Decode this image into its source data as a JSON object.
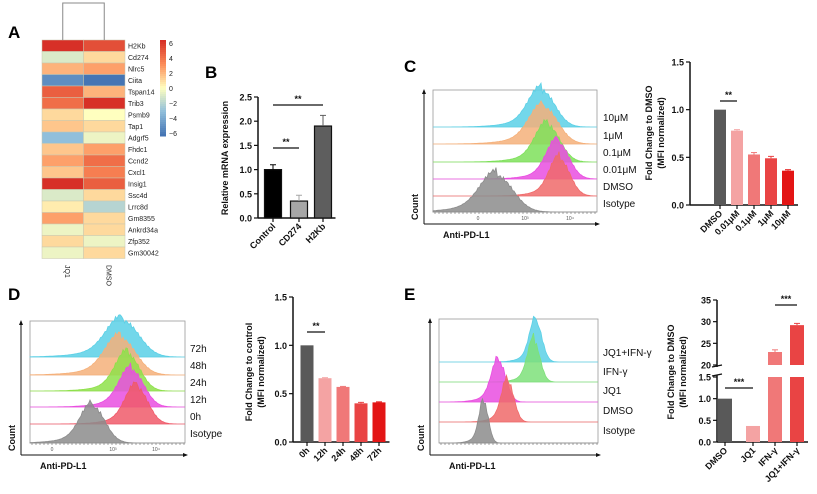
{
  "panels": {
    "A": "A",
    "B": "B",
    "C": "C",
    "D": "D",
    "E": "E"
  },
  "chart_data": [
    {
      "panel": "A",
      "type": "heatmap",
      "columns": [
        "JQ1",
        "DMSO"
      ],
      "rows": [
        "H2Kb",
        "Cd274",
        "Nlrc5",
        "Ciita",
        "Tspan14",
        "Trib3",
        "Psmb9",
        "Tap1",
        "Adgrf5",
        "Fhdc1",
        "Ccnd2",
        "Cxcl1",
        "Insig1",
        "Ssc4d",
        "Lrrc8d",
        "Gm8355",
        "Ankrd34a",
        "Zfp352",
        "Gm30042"
      ],
      "values": [
        [
          6,
          5
        ],
        [
          -1,
          1
        ],
        [
          2,
          2.5
        ],
        [
          -5,
          -6
        ],
        [
          4.5,
          2
        ],
        [
          4,
          6
        ],
        [
          1,
          0
        ],
        [
          1.5,
          1
        ],
        [
          -3,
          -0.5
        ],
        [
          1.5,
          2.5
        ],
        [
          2.5,
          4
        ],
        [
          1.5,
          3.5
        ],
        [
          6.5,
          4.5
        ],
        [
          -1,
          1
        ],
        [
          0.5,
          -2
        ],
        [
          2.5,
          1
        ],
        [
          -0.5,
          1
        ],
        [
          1,
          -0.5
        ],
        [
          -0.5,
          1
        ]
      ],
      "colorbar_ticks": [
        "6",
        "4",
        "2",
        "0",
        "−2",
        "−4",
        "−6"
      ],
      "color_range": [
        -6,
        6
      ],
      "colormap": [
        "#4575b4",
        "#91bfdb",
        "#ffffbf",
        "#fc8d59",
        "#d73027"
      ],
      "dendrogram": "columns"
    },
    {
      "panel": "B",
      "type": "bar",
      "categories": [
        "Control",
        "CD274",
        "H2Kb"
      ],
      "values": [
        1.0,
        0.35,
        1.9
      ],
      "errors": [
        0.1,
        0.12,
        0.22
      ],
      "colors": [
        "#000000",
        "#a6a6a6",
        "#5e5e5e"
      ],
      "ylabel": "Relative mRNA expression",
      "ylim": [
        0,
        2.5
      ],
      "yticks": [
        "0.0",
        "0.5",
        "1.0",
        "1.5",
        "2.0",
        "2.5"
      ],
      "significance": [
        {
          "from": "Control",
          "to": "CD274",
          "label": "**"
        },
        {
          "from": "Control",
          "to": "H2Kb",
          "label": "**"
        }
      ]
    },
    {
      "panel": "C",
      "type": "histogram-overlay",
      "samples": [
        "10μM",
        "1μM",
        "0.1μM",
        "0.01μM",
        "DMSO",
        "Isotype"
      ],
      "colors": [
        "#5bd0e6",
        "#f5b07a",
        "#7ee05a",
        "#e94ee0",
        "#f06a6a",
        "#8c8c8c"
      ],
      "xlabel": "Anti-PD-L1",
      "ylabel": "Count",
      "xticks": [
        "0",
        "10³",
        "10⁴"
      ]
    },
    {
      "panel": "C",
      "type": "bar",
      "categories": [
        "DMSO",
        "0.01μM",
        "0.1μM",
        "1μM",
        "10μM"
      ],
      "values": [
        1.0,
        0.78,
        0.53,
        0.49,
        0.36
      ],
      "errors": [
        0,
        0.01,
        0.02,
        0.02,
        0.01
      ],
      "colors": [
        "#595959",
        "#f4a3a3",
        "#f07878",
        "#e94444",
        "#e31515"
      ],
      "ylabel": [
        "Fold Change to DMSO",
        "(MFI normalized)"
      ],
      "ylim": [
        0,
        1.5
      ],
      "yticks": [
        "0.0",
        "0.5",
        "1.0",
        "1.5"
      ],
      "significance": [
        {
          "from": "DMSO",
          "to": "0.01μM",
          "label": "**"
        }
      ]
    },
    {
      "panel": "D",
      "type": "histogram-overlay",
      "samples": [
        "72h",
        "48h",
        "24h",
        "12h",
        "0h",
        "Isotype"
      ],
      "colors": [
        "#5bd0e6",
        "#f5b07a",
        "#8ee04a",
        "#e94ee0",
        "#f05a6a",
        "#8c8c8c"
      ],
      "xlabel": "Anti-PD-L1",
      "ylabel": "Count",
      "xticks": [
        "0",
        "10³",
        "10⁴"
      ]
    },
    {
      "panel": "D",
      "type": "bar",
      "categories": [
        "0h",
        "12h",
        "24h",
        "48h",
        "72h"
      ],
      "values": [
        1.0,
        0.66,
        0.57,
        0.4,
        0.41
      ],
      "errors": [
        0,
        0.005,
        0.005,
        0.01,
        0.005
      ],
      "colors": [
        "#595959",
        "#f4a3a3",
        "#f07878",
        "#e94444",
        "#e31515"
      ],
      "ylabel": [
        "Fold Change to control",
        "(MFI normalized)"
      ],
      "ylim": [
        0,
        1.5
      ],
      "yticks": [
        "0.0",
        "0.5",
        "1.0",
        "1.5"
      ],
      "significance": [
        {
          "from": "0h",
          "to": "12h",
          "label": "**"
        }
      ]
    },
    {
      "panel": "E",
      "type": "histogram-overlay",
      "samples": [
        "JQ1+IFN-γ",
        "IFN-γ",
        "JQ1",
        "DMSO",
        "Isotype"
      ],
      "colors": [
        "#5bd0e6",
        "#7ee07a",
        "#e94ee0",
        "#f06a6a",
        "#8c8c8c"
      ],
      "xlabel": "Anti-PD-L1",
      "ylabel": "Count"
    },
    {
      "panel": "E",
      "type": "bar",
      "categories": [
        "DMSO",
        "JQ1",
        "IFN-γ",
        "JQ1+IFN-γ"
      ],
      "values": [
        1.0,
        0.37,
        23.0,
        29.2
      ],
      "errors": [
        0,
        0,
        0.5,
        0.4
      ],
      "colors": [
        "#595959",
        "#f4a3a3",
        "#f07878",
        "#e94444"
      ],
      "ylabel": [
        "Fold Change to DMSO",
        "(MFI normalized)"
      ],
      "ylim": [
        0,
        35
      ],
      "axis_break": [
        1.5,
        20
      ],
      "yticks": [
        "0.0",
        "0.5",
        "1.0",
        "1.5",
        "20",
        "25",
        "30",
        "35"
      ],
      "significance": [
        {
          "from": "DMSO",
          "to": "JQ1",
          "label": "***"
        },
        {
          "from": "IFN-γ",
          "to": "JQ1+IFN-γ",
          "label": "***"
        }
      ]
    }
  ]
}
